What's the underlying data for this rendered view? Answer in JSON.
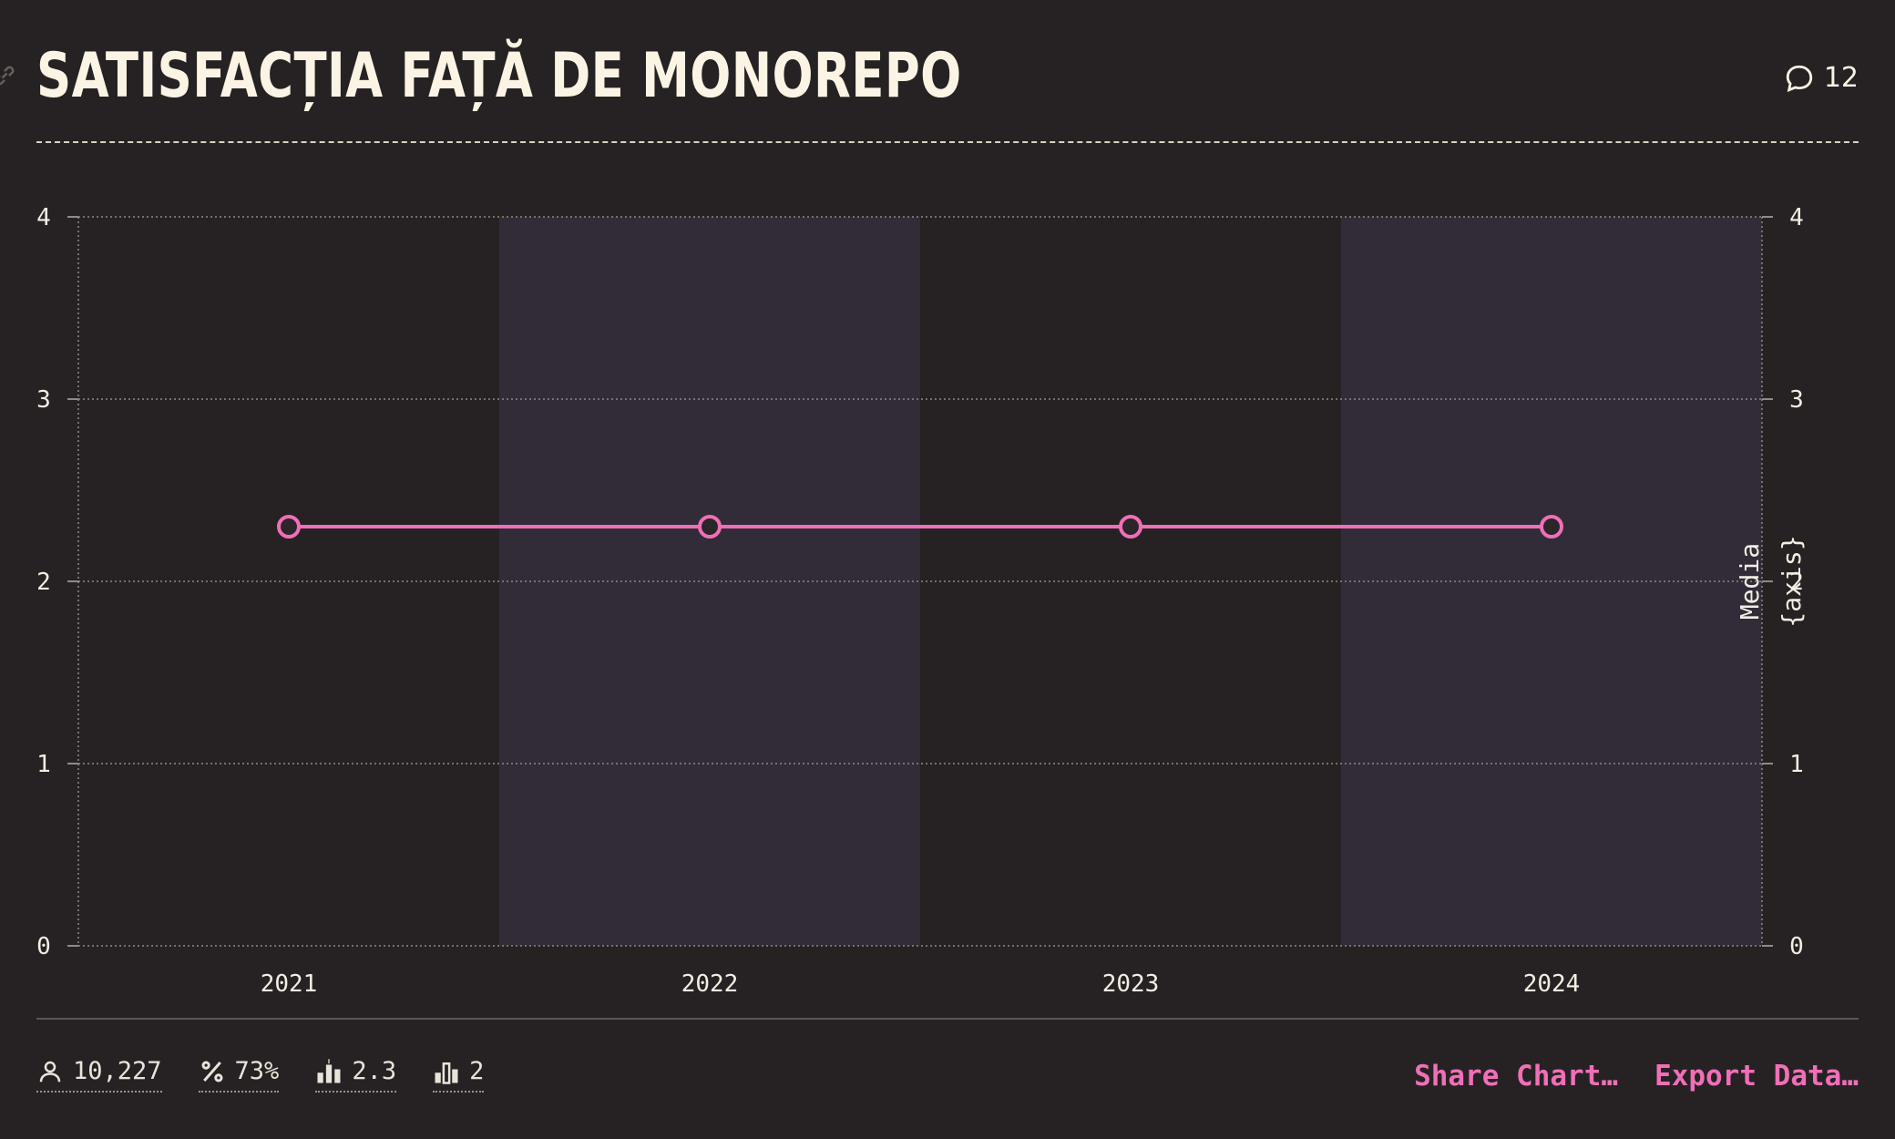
{
  "header": {
    "title": "SATISFACȚIA FAȚĂ DE MONOREPO",
    "comment_count": "12"
  },
  "icons": {
    "link": "link-icon",
    "comment": "comment-bubble-icon"
  },
  "chart_data": {
    "type": "line",
    "title": "SATISFACȚIA FAȚĂ DE MONOREPO",
    "categories": [
      "2021",
      "2022",
      "2023",
      "2024"
    ],
    "series": [
      {
        "values": [
          2.3,
          2.3,
          2.3,
          2.3
        ],
        "color": "#f06fb7"
      }
    ],
    "ylim": [
      0,
      4
    ],
    "y_ticks": [
      "0",
      "1",
      "2",
      "3",
      "4"
    ],
    "y_axis_right_label": [
      "Media",
      "{axis}"
    ],
    "grid": true,
    "alternating_column_shading": true,
    "colors": {
      "line": "#f06fb7",
      "shade": "#312c37",
      "grid": "#8e8a86",
      "text": "#f3eee4"
    }
  },
  "stats": [
    {
      "icon": "respondents-icon",
      "value": "10,227"
    },
    {
      "icon": "percent-icon",
      "value": "73%"
    },
    {
      "icon": "average-icon",
      "value": "2.3"
    },
    {
      "icon": "median-icon",
      "value": "2"
    }
  ],
  "actions": {
    "share": "Share Chart…",
    "export": "Export Data…"
  }
}
